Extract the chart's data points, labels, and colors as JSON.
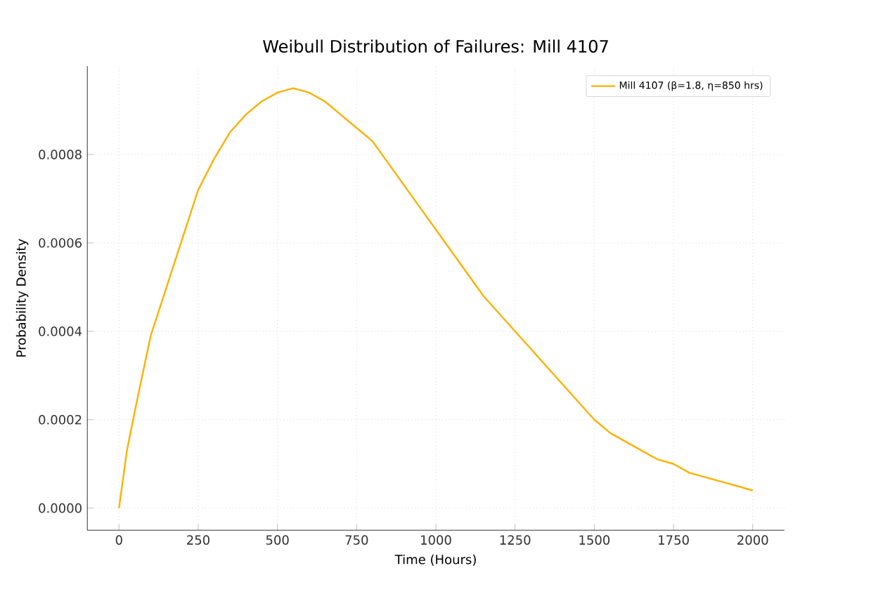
{
  "chart_data": {
    "type": "line",
    "title": "Weibull Distribution of Failures: Mill 4107",
    "xlabel": "Time (Hours)",
    "ylabel": "Probability Density",
    "xlim": [
      -100,
      2100
    ],
    "ylim": [
      -5e-05,
      0.001
    ],
    "xticks": [
      0,
      250,
      500,
      750,
      1000,
      1250,
      1500,
      1750,
      2000
    ],
    "yticks": [
      {
        "value": 0,
        "label": "0.0000"
      },
      {
        "value": 0.0002,
        "label": "0.0002"
      },
      {
        "value": 0.0004,
        "label": "0.0004"
      },
      {
        "value": 0.0006,
        "label": "0.0006"
      },
      {
        "value": 0.0008,
        "label": "0.0008"
      }
    ],
    "grid": true,
    "legend": "top right",
    "series": [
      {
        "name": "Mill 4107 (β=1.8, η=850 hrs)",
        "color": "#ffb000",
        "x": [
          0,
          25,
          50,
          100,
          150,
          200,
          250,
          300,
          350,
          400,
          450,
          500,
          550,
          600,
          650,
          700,
          750,
          800,
          850,
          900,
          950,
          1000,
          1050,
          1100,
          1150,
          1200,
          1250,
          1300,
          1350,
          1400,
          1450,
          1500,
          1550,
          1600,
          1650,
          1700,
          1750,
          1800,
          1850,
          1900,
          1950,
          2000
        ],
        "values": [
          0,
          0.00013,
          0.00022,
          0.00039,
          0.0005,
          0.00061,
          0.00072,
          0.00079,
          0.00085,
          0.00089,
          0.00092,
          0.00094,
          0.00095,
          0.00094,
          0.00092,
          0.00089,
          0.00086,
          0.00083,
          0.00078,
          0.00073,
          0.00068,
          0.00063,
          0.00058,
          0.00053,
          0.00048,
          0.00044,
          0.0004,
          0.00036,
          0.00032,
          0.00028,
          0.00024,
          0.0002,
          0.00017,
          0.00015,
          0.00013,
          0.00011,
          0.0001,
          8e-05,
          7e-05,
          6e-05,
          5e-05,
          4e-05
        ]
      }
    ]
  }
}
